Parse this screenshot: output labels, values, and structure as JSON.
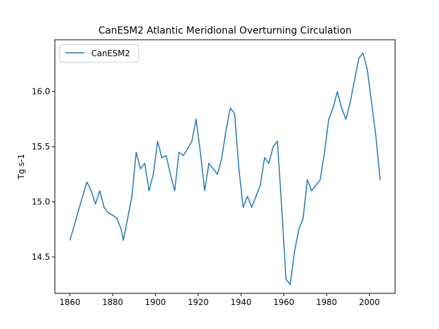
{
  "chart_data": {
    "type": "line",
    "title": "CanESM2 Atlantic Meridional Overturning Circulation",
    "xlabel": "",
    "ylabel": "Tg s-1",
    "xlim": [
      1853,
      2012
    ],
    "ylim": [
      14.17,
      16.47
    ],
    "xticks": [
      1860,
      1880,
      1900,
      1920,
      1940,
      1960,
      1980,
      2000
    ],
    "yticks": [
      14.5,
      15.0,
      15.5,
      16.0
    ],
    "ytick_labels": [
      "14.5",
      "15.0",
      "15.5",
      "16.0"
    ],
    "grid": false,
    "legend": {
      "position": "top-left"
    },
    "series": [
      {
        "name": "CanESM2",
        "color": "#1f77b4",
        "x": [
          1860,
          1862,
          1864,
          1866,
          1868,
          1870,
          1872,
          1874,
          1876,
          1878,
          1880,
          1882,
          1884,
          1885,
          1887,
          1889,
          1891,
          1893,
          1895,
          1897,
          1899,
          1901,
          1903,
          1905,
          1907,
          1909,
          1911,
          1913,
          1915,
          1917,
          1919,
          1921,
          1923,
          1925,
          1927,
          1929,
          1931,
          1933,
          1935,
          1937,
          1939,
          1941,
          1943,
          1945,
          1947,
          1949,
          1951,
          1953,
          1955,
          1957,
          1959,
          1961,
          1963,
          1965,
          1967,
          1969,
          1971,
          1973,
          1975,
          1977,
          1979,
          1981,
          1983,
          1985,
          1987,
          1989,
          1991,
          1993,
          1995,
          1997,
          1999,
          2001,
          2003,
          2005
        ],
        "values": [
          14.65,
          14.78,
          14.92,
          15.05,
          15.18,
          15.1,
          14.98,
          15.1,
          14.95,
          14.9,
          14.88,
          14.85,
          14.75,
          14.65,
          14.85,
          15.05,
          15.45,
          15.3,
          15.35,
          15.1,
          15.25,
          15.55,
          15.4,
          15.42,
          15.25,
          15.1,
          15.45,
          15.42,
          15.48,
          15.55,
          15.75,
          15.45,
          15.1,
          15.35,
          15.3,
          15.25,
          15.4,
          15.65,
          15.85,
          15.8,
          15.3,
          14.95,
          15.05,
          14.95,
          15.05,
          15.15,
          15.4,
          15.35,
          15.5,
          15.55,
          14.95,
          14.3,
          14.25,
          14.55,
          14.75,
          14.85,
          15.2,
          15.1,
          15.15,
          15.2,
          15.45,
          15.75,
          15.85,
          16.0,
          15.85,
          15.75,
          15.9,
          16.1,
          16.3,
          16.35,
          16.2,
          15.9,
          15.6,
          15.2
        ]
      }
    ]
  }
}
